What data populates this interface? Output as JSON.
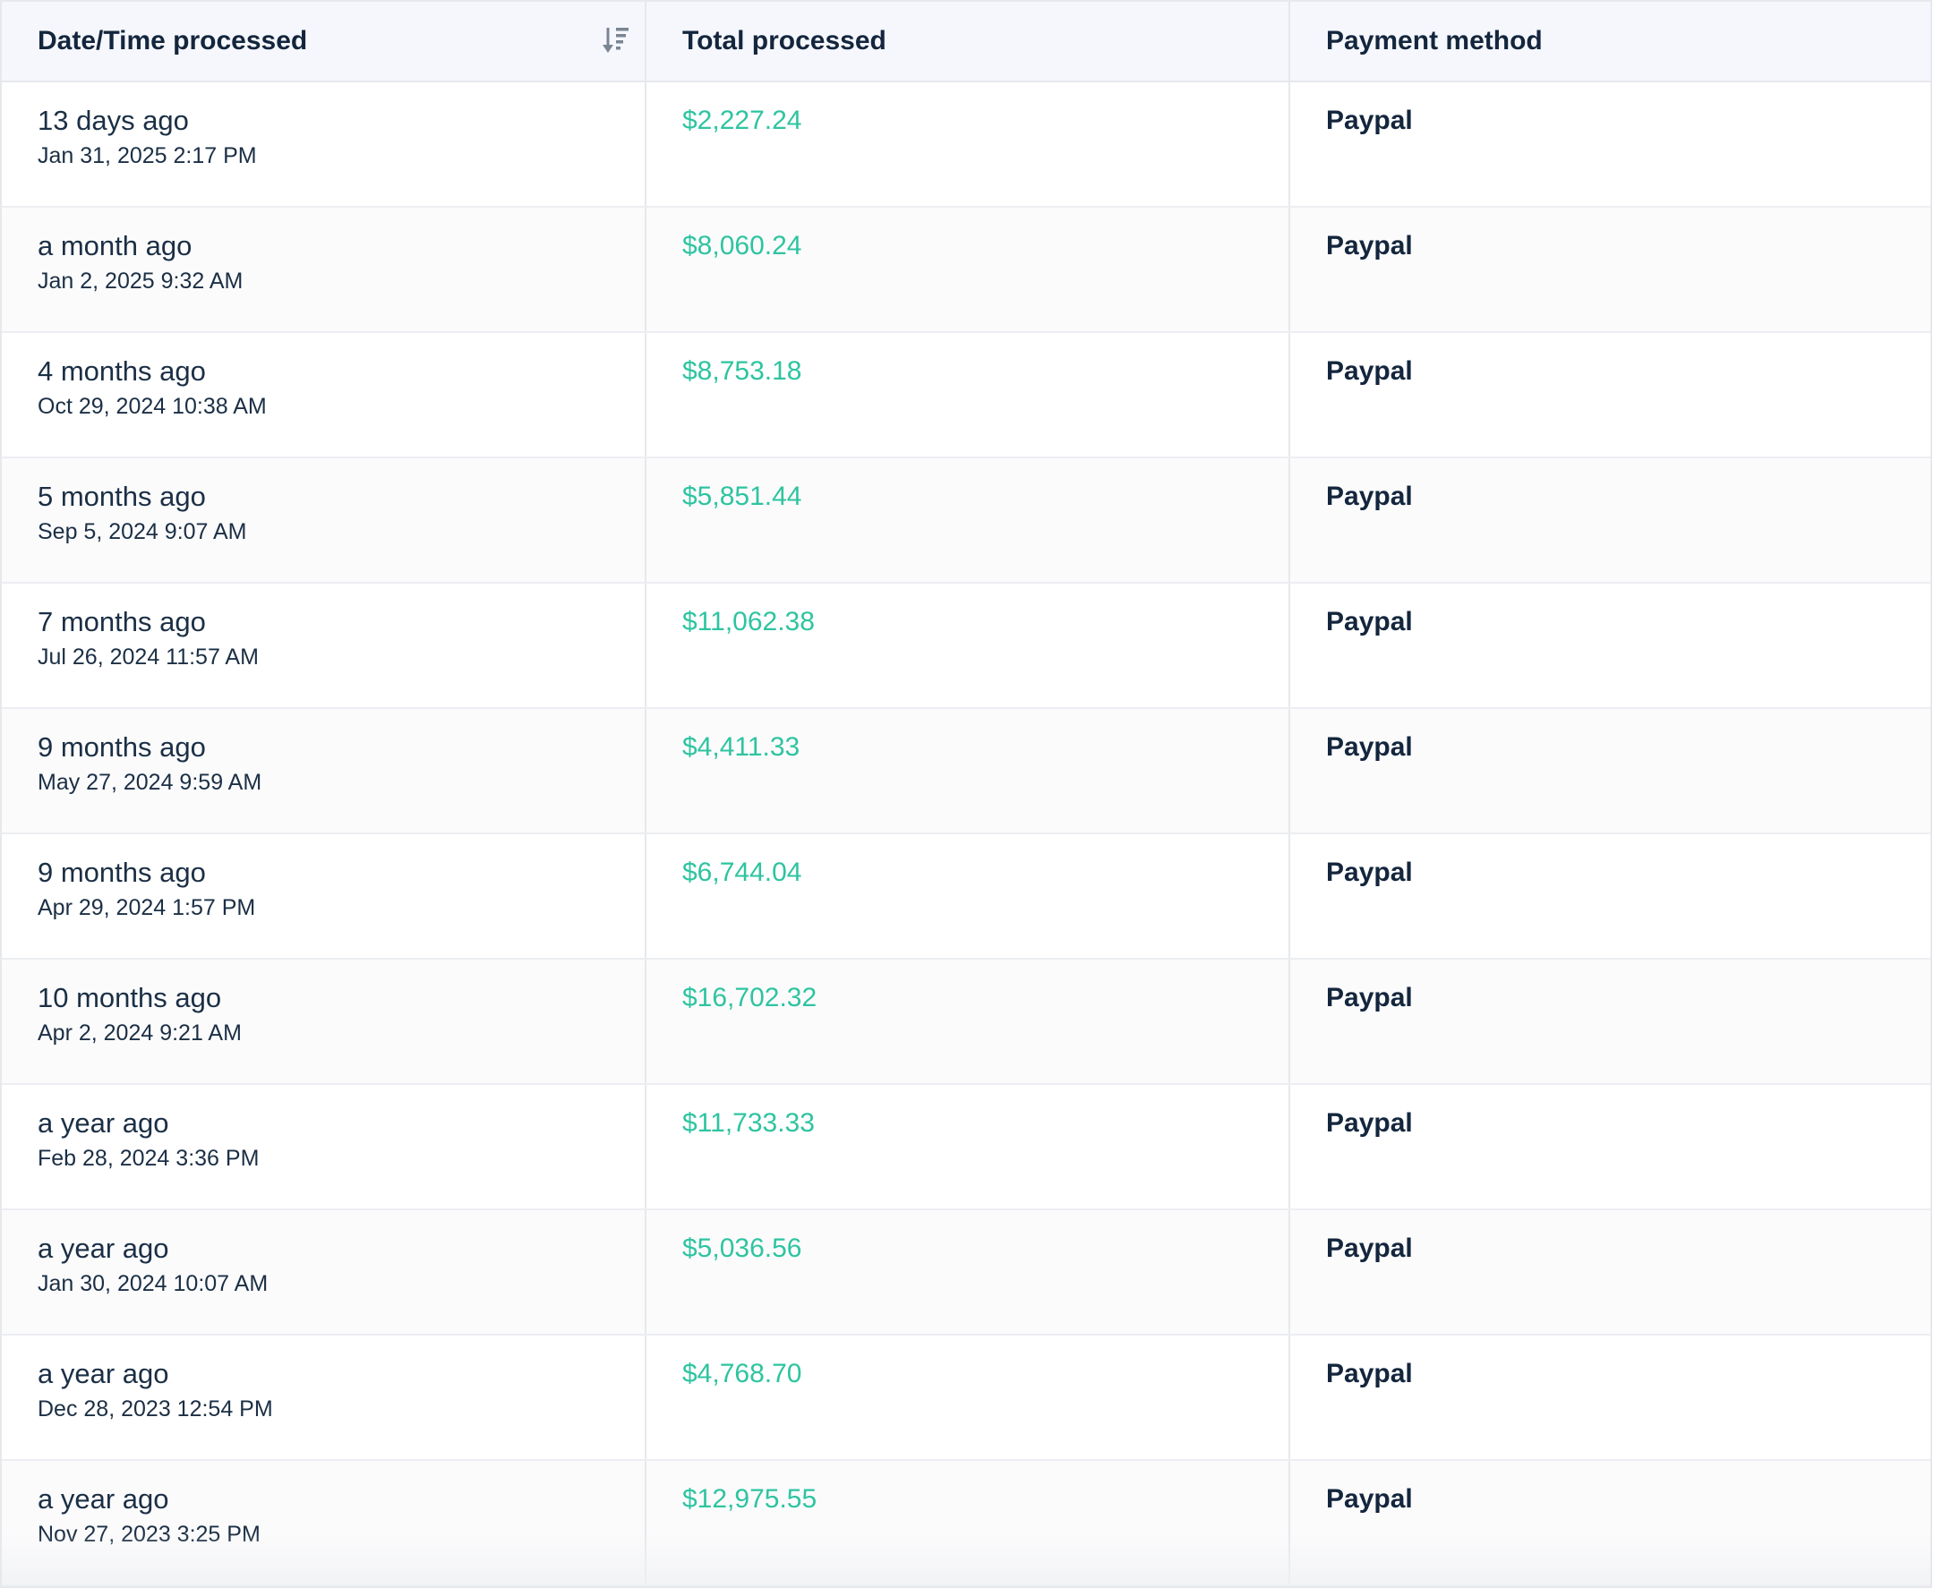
{
  "table": {
    "headers": {
      "date": "Date/Time processed",
      "total": "Total processed",
      "method": "Payment method"
    },
    "sort_icon": "sort-descending-icon",
    "amount_color": "#2ec4a0",
    "rows": [
      {
        "relative": "13 days ago",
        "datetime": "Jan 31, 2025 2:17 PM",
        "total": "$2,227.24",
        "method": "Paypal"
      },
      {
        "relative": "a month ago",
        "datetime": "Jan 2, 2025 9:32 AM",
        "total": "$8,060.24",
        "method": "Paypal"
      },
      {
        "relative": "4 months ago",
        "datetime": "Oct 29, 2024 10:38 AM",
        "total": "$8,753.18",
        "method": "Paypal"
      },
      {
        "relative": "5 months ago",
        "datetime": "Sep 5, 2024 9:07 AM",
        "total": "$5,851.44",
        "method": "Paypal"
      },
      {
        "relative": "7 months ago",
        "datetime": "Jul 26, 2024 11:57 AM",
        "total": "$11,062.38",
        "method": "Paypal"
      },
      {
        "relative": "9 months ago",
        "datetime": "May 27, 2024 9:59 AM",
        "total": "$4,411.33",
        "method": "Paypal"
      },
      {
        "relative": "9 months ago",
        "datetime": "Apr 29, 2024 1:57 PM",
        "total": "$6,744.04",
        "method": "Paypal"
      },
      {
        "relative": "10 months ago",
        "datetime": "Apr 2, 2024 9:21 AM",
        "total": "$16,702.32",
        "method": "Paypal"
      },
      {
        "relative": "a year ago",
        "datetime": "Feb 28, 2024 3:36 PM",
        "total": "$11,733.33",
        "method": "Paypal"
      },
      {
        "relative": "a year ago",
        "datetime": "Jan 30, 2024 10:07 AM",
        "total": "$5,036.56",
        "method": "Paypal"
      },
      {
        "relative": "a year ago",
        "datetime": "Dec 28, 2023 12:54 PM",
        "total": "$4,768.70",
        "method": "Paypal"
      },
      {
        "relative": "a year ago",
        "datetime": "Nov 27, 2023 3:25 PM",
        "total": "$12,975.55",
        "method": "Paypal"
      }
    ]
  }
}
